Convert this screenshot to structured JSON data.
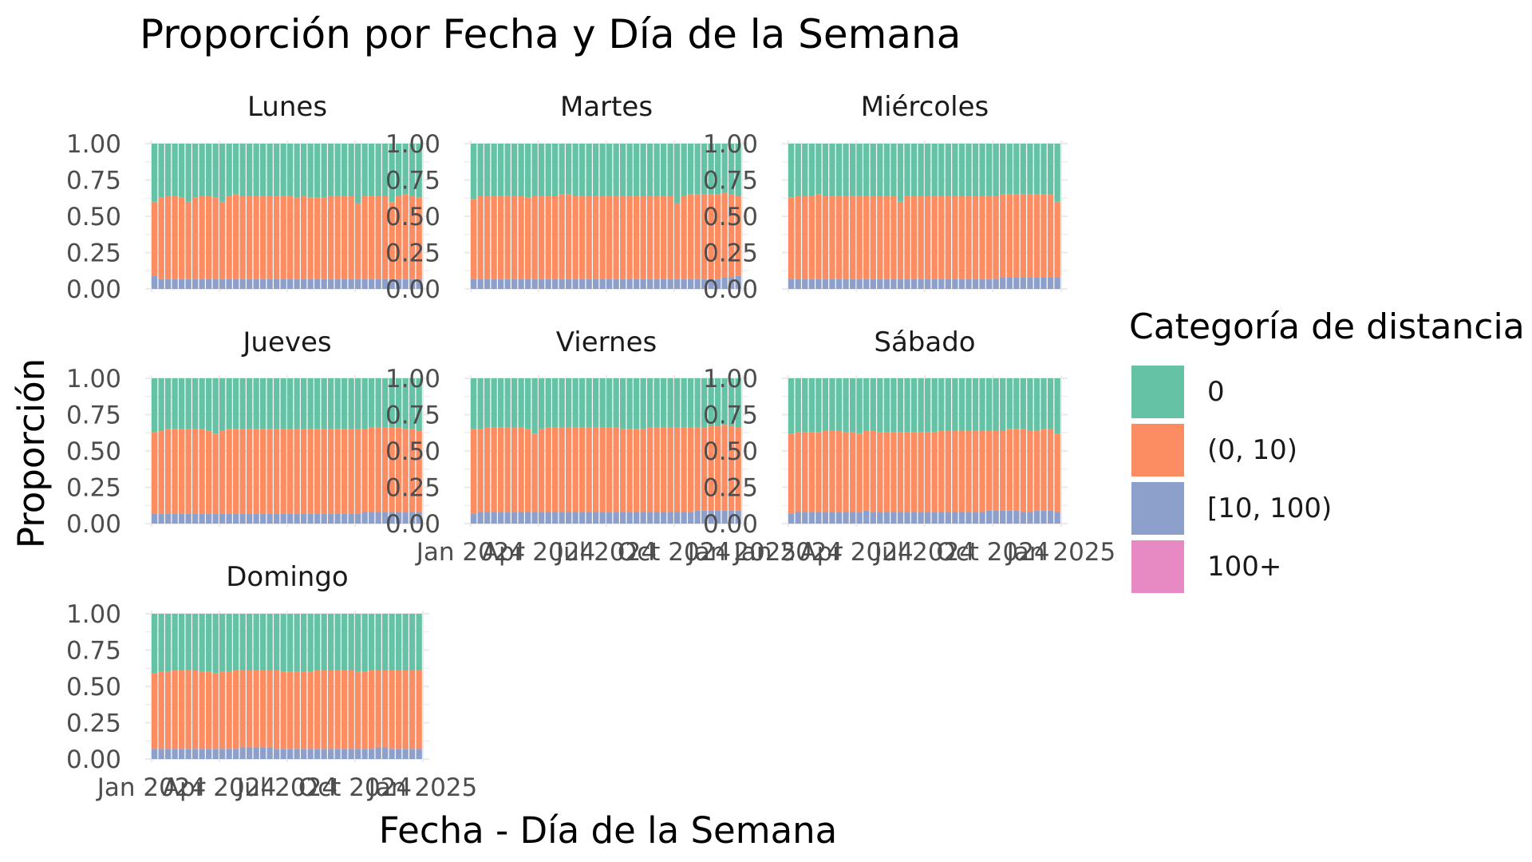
{
  "chart_data": {
    "type": "bar",
    "stacked": true,
    "title": "Proporción por Fecha y Día de la Semana",
    "xlabel": "Fecha - Día de la Semana",
    "ylabel": "Proporción",
    "ylim": [
      0,
      1
    ],
    "y_ticks": [
      "0.00",
      "0.25",
      "0.50",
      "0.75",
      "1.00"
    ],
    "x_ticks": [
      "Jan 2024",
      "Apr 2024",
      "Jul 2024",
      "Oct 2024",
      "Jan 2025"
    ],
    "grid": true,
    "legend": {
      "title": "Categoría de distancia",
      "position": "right",
      "entries": [
        {
          "label": "0",
          "color": "#66c2a5"
        },
        {
          "label": "(0, 10)",
          "color": "#fc8d62"
        },
        {
          "label": "[10, 100)",
          "color": "#8da0cb"
        },
        {
          "label": "100+",
          "color": "#e78ac3"
        }
      ]
    },
    "facets": [
      {
        "name": "Lunes",
        "low": [
          0.09,
          0.07,
          0.07,
          0.07,
          0.07,
          0.07,
          0.07,
          0.07,
          0.07,
          0.07,
          0.07,
          0.07,
          0.07,
          0.07,
          0.07,
          0.07,
          0.07,
          0.07,
          0.07,
          0.07,
          0.07,
          0.07,
          0.07,
          0.07,
          0.07,
          0.07,
          0.07,
          0.07,
          0.07,
          0.07,
          0.07,
          0.07,
          0.07,
          0.07,
          0.07,
          0.07,
          0.07,
          0.07,
          0.07,
          0.07
        ],
        "mid": [
          0.6,
          0.63,
          0.64,
          0.64,
          0.63,
          0.6,
          0.63,
          0.64,
          0.64,
          0.63,
          0.6,
          0.64,
          0.65,
          0.64,
          0.64,
          0.64,
          0.64,
          0.64,
          0.64,
          0.64,
          0.64,
          0.63,
          0.64,
          0.63,
          0.63,
          0.63,
          0.64,
          0.64,
          0.64,
          0.64,
          0.59,
          0.64,
          0.64,
          0.64,
          0.64,
          0.6,
          0.64,
          0.65,
          0.64,
          0.63
        ]
      },
      {
        "name": "Martes",
        "low": [
          0.07,
          0.07,
          0.07,
          0.07,
          0.07,
          0.07,
          0.07,
          0.07,
          0.07,
          0.07,
          0.07,
          0.07,
          0.07,
          0.07,
          0.07,
          0.07,
          0.07,
          0.07,
          0.07,
          0.07,
          0.07,
          0.07,
          0.07,
          0.07,
          0.07,
          0.07,
          0.07,
          0.07,
          0.07,
          0.07,
          0.07,
          0.07,
          0.07,
          0.07,
          0.07,
          0.07,
          0.07,
          0.08,
          0.08,
          0.09
        ],
        "mid": [
          0.62,
          0.64,
          0.64,
          0.64,
          0.64,
          0.64,
          0.64,
          0.64,
          0.63,
          0.64,
          0.64,
          0.64,
          0.64,
          0.65,
          0.65,
          0.64,
          0.64,
          0.64,
          0.64,
          0.64,
          0.64,
          0.64,
          0.64,
          0.64,
          0.64,
          0.64,
          0.64,
          0.64,
          0.64,
          0.64,
          0.59,
          0.64,
          0.65,
          0.65,
          0.65,
          0.65,
          0.65,
          0.66,
          0.65,
          0.64
        ]
      },
      {
        "name": "Miércoles",
        "low": [
          0.07,
          0.07,
          0.07,
          0.07,
          0.07,
          0.07,
          0.07,
          0.07,
          0.07,
          0.07,
          0.07,
          0.07,
          0.07,
          0.07,
          0.07,
          0.07,
          0.07,
          0.07,
          0.07,
          0.07,
          0.07,
          0.07,
          0.07,
          0.07,
          0.07,
          0.07,
          0.07,
          0.07,
          0.07,
          0.07,
          0.07,
          0.08,
          0.08,
          0.08,
          0.08,
          0.08,
          0.08,
          0.08,
          0.08,
          0.08
        ],
        "mid": [
          0.63,
          0.64,
          0.64,
          0.64,
          0.65,
          0.64,
          0.64,
          0.64,
          0.64,
          0.64,
          0.64,
          0.64,
          0.64,
          0.64,
          0.64,
          0.64,
          0.6,
          0.64,
          0.64,
          0.64,
          0.64,
          0.64,
          0.64,
          0.64,
          0.64,
          0.64,
          0.64,
          0.64,
          0.64,
          0.64,
          0.64,
          0.65,
          0.65,
          0.65,
          0.65,
          0.65,
          0.65,
          0.65,
          0.65,
          0.6
        ]
      },
      {
        "name": "Jueves",
        "low": [
          0.07,
          0.07,
          0.07,
          0.07,
          0.07,
          0.07,
          0.07,
          0.07,
          0.07,
          0.07,
          0.07,
          0.07,
          0.07,
          0.07,
          0.07,
          0.07,
          0.07,
          0.07,
          0.07,
          0.07,
          0.07,
          0.07,
          0.07,
          0.07,
          0.07,
          0.07,
          0.07,
          0.07,
          0.07,
          0.07,
          0.07,
          0.08,
          0.08,
          0.08,
          0.08,
          0.08,
          0.08,
          0.08,
          0.08,
          0.08
        ],
        "mid": [
          0.63,
          0.64,
          0.65,
          0.65,
          0.65,
          0.65,
          0.65,
          0.65,
          0.64,
          0.62,
          0.64,
          0.65,
          0.65,
          0.65,
          0.65,
          0.65,
          0.65,
          0.65,
          0.65,
          0.65,
          0.65,
          0.65,
          0.65,
          0.65,
          0.65,
          0.65,
          0.65,
          0.65,
          0.65,
          0.65,
          0.65,
          0.65,
          0.66,
          0.66,
          0.66,
          0.66,
          0.66,
          0.65,
          0.65,
          0.64
        ]
      },
      {
        "name": "Viernes",
        "low": [
          0.07,
          0.08,
          0.08,
          0.08,
          0.08,
          0.08,
          0.08,
          0.08,
          0.08,
          0.08,
          0.08,
          0.08,
          0.08,
          0.08,
          0.08,
          0.08,
          0.08,
          0.08,
          0.08,
          0.08,
          0.08,
          0.08,
          0.08,
          0.08,
          0.08,
          0.08,
          0.08,
          0.08,
          0.08,
          0.08,
          0.08,
          0.08,
          0.08,
          0.09,
          0.09,
          0.09,
          0.09,
          0.09,
          0.09,
          0.09
        ],
        "mid": [
          0.65,
          0.65,
          0.66,
          0.66,
          0.66,
          0.66,
          0.66,
          0.66,
          0.65,
          0.62,
          0.65,
          0.66,
          0.66,
          0.66,
          0.66,
          0.66,
          0.66,
          0.66,
          0.66,
          0.66,
          0.66,
          0.66,
          0.65,
          0.65,
          0.65,
          0.65,
          0.66,
          0.66,
          0.66,
          0.66,
          0.66,
          0.66,
          0.66,
          0.66,
          0.66,
          0.67,
          0.67,
          0.68,
          0.67,
          0.66
        ]
      },
      {
        "name": "Sábado",
        "low": [
          0.07,
          0.08,
          0.08,
          0.08,
          0.08,
          0.08,
          0.08,
          0.08,
          0.08,
          0.08,
          0.08,
          0.09,
          0.08,
          0.08,
          0.08,
          0.08,
          0.08,
          0.08,
          0.08,
          0.08,
          0.08,
          0.08,
          0.08,
          0.08,
          0.08,
          0.08,
          0.08,
          0.08,
          0.08,
          0.09,
          0.09,
          0.09,
          0.09,
          0.09,
          0.08,
          0.08,
          0.09,
          0.09,
          0.09,
          0.08
        ],
        "mid": [
          0.62,
          0.63,
          0.63,
          0.63,
          0.63,
          0.64,
          0.64,
          0.64,
          0.63,
          0.63,
          0.62,
          0.64,
          0.64,
          0.63,
          0.63,
          0.63,
          0.63,
          0.63,
          0.63,
          0.63,
          0.63,
          0.63,
          0.64,
          0.64,
          0.64,
          0.64,
          0.64,
          0.64,
          0.64,
          0.64,
          0.64,
          0.64,
          0.65,
          0.65,
          0.65,
          0.64,
          0.64,
          0.65,
          0.65,
          0.62
        ]
      },
      {
        "name": "Domingo",
        "low": [
          0.07,
          0.07,
          0.07,
          0.07,
          0.07,
          0.07,
          0.07,
          0.07,
          0.07,
          0.07,
          0.07,
          0.07,
          0.07,
          0.08,
          0.08,
          0.08,
          0.08,
          0.08,
          0.07,
          0.07,
          0.07,
          0.07,
          0.07,
          0.07,
          0.07,
          0.07,
          0.07,
          0.07,
          0.07,
          0.07,
          0.07,
          0.07,
          0.07,
          0.08,
          0.08,
          0.07,
          0.07,
          0.07,
          0.07,
          0.07
        ],
        "mid": [
          0.59,
          0.6,
          0.6,
          0.61,
          0.61,
          0.61,
          0.61,
          0.6,
          0.6,
          0.59,
          0.6,
          0.6,
          0.61,
          0.61,
          0.61,
          0.61,
          0.61,
          0.61,
          0.61,
          0.6,
          0.6,
          0.6,
          0.6,
          0.6,
          0.61,
          0.61,
          0.61,
          0.61,
          0.61,
          0.61,
          0.6,
          0.6,
          0.61,
          0.61,
          0.61,
          0.61,
          0.61,
          0.61,
          0.61,
          0.61
        ]
      }
    ]
  }
}
